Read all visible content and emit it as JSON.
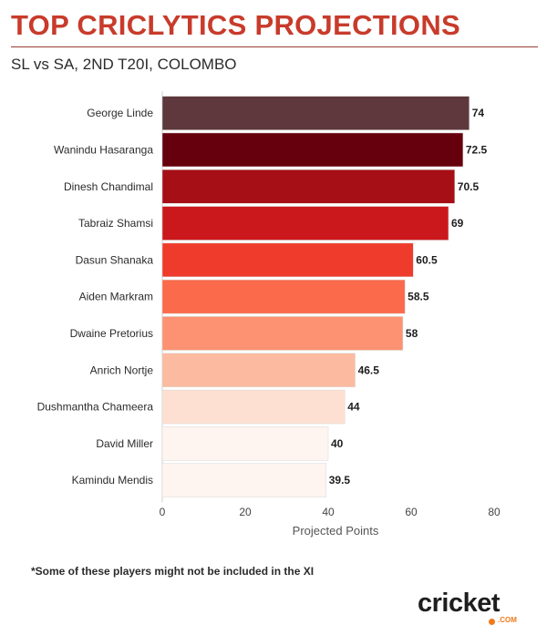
{
  "header": {
    "title": "TOP CRICLYTICS PROJECTIONS",
    "subtitle": "SL vs SA, 2ND T20I, COLOMBO"
  },
  "footnote": "*Some of these players might not be included in the XI",
  "logo": {
    "text": "cricket",
    "sub": ".COM",
    "colors": {
      "text": "#1e1e1e",
      "accent": "#f07a1a"
    }
  },
  "chart_data": {
    "type": "bar",
    "orientation": "horizontal",
    "categories": [
      "George Linde",
      "Wanindu Hasaranga",
      "Dinesh Chandimal",
      "Tabraiz Shamsi",
      "Dasun Shanaka",
      "Aiden Markram",
      "Dwaine Pretorius",
      "Anrich Nortje",
      "Dushmantha Chameera",
      "David Miller",
      "Kamindu Mendis"
    ],
    "values": [
      74,
      72.5,
      70.5,
      69,
      60.5,
      58.5,
      58,
      46.5,
      44,
      40,
      39.5
    ],
    "value_labels": [
      "74",
      "72.5",
      "70.5",
      "69",
      "60.5",
      "58.5",
      "58",
      "46.5",
      "44",
      "40",
      "39.5"
    ],
    "bar_colors": [
      "#5e383c",
      "#67000d",
      "#a50f15",
      "#cb181d",
      "#ef3b2c",
      "#fb6a4a",
      "#fc9272",
      "#fcbba1",
      "#fee0d2",
      "#fff5f0",
      "#fff5f0"
    ],
    "xlabel": "Projected Points",
    "ylabel": "",
    "xlim": [
      0,
      80
    ],
    "xticks": [
      0,
      20,
      40,
      60,
      80
    ],
    "grid": false,
    "legend": "none"
  }
}
